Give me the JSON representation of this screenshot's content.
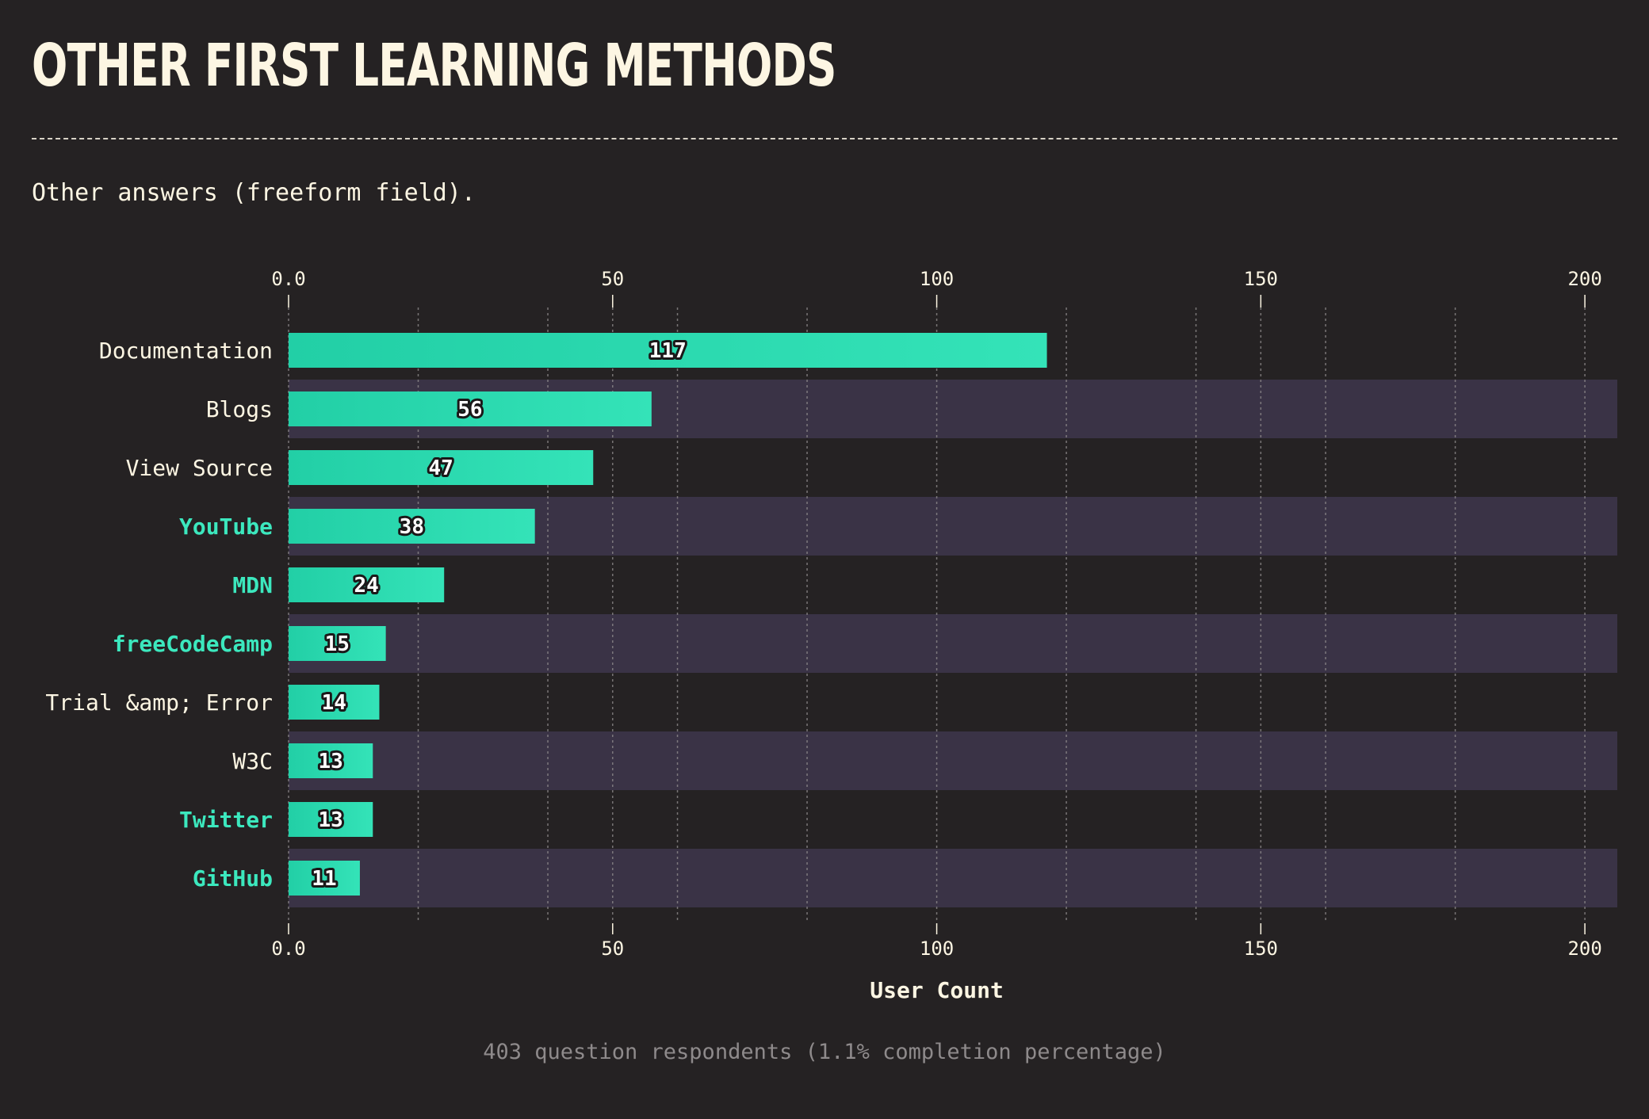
{
  "header": {
    "title": "OTHER FIRST LEARNING METHODS",
    "subtitle": "Other answers (freeform field)."
  },
  "footer": {
    "note": "403 question respondents (1.1% completion percentage)"
  },
  "colors": {
    "background": "#252223",
    "band": "#3a3346",
    "bar_start": "#22cfa6",
    "bar_end": "#34e3b8",
    "label_text": "#fdf6e3",
    "highlight_label": "#3ce8be",
    "grid": "#8e8a8b"
  },
  "chart_data": {
    "type": "bar",
    "orientation": "horizontal",
    "categories": [
      "Documentation",
      "Blogs",
      "View Source",
      "YouTube",
      "MDN",
      "freeCodeCamp",
      "Trial &amp; Error",
      "W3C",
      "Twitter",
      "GitHub"
    ],
    "values": [
      117,
      56,
      47,
      38,
      24,
      15,
      14,
      13,
      13,
      11
    ],
    "highlighted": [
      false,
      false,
      false,
      true,
      true,
      true,
      false,
      false,
      true,
      true
    ],
    "xlabel": "User Count",
    "ylabel": "",
    "xlim": [
      0,
      205
    ],
    "xticks": [
      0,
      50,
      100,
      150,
      200
    ],
    "xtick_labels": [
      "0.0",
      "50",
      "100",
      "150",
      "200"
    ],
    "minor_grid": [
      20,
      40,
      60,
      80,
      120,
      140,
      160,
      180
    ],
    "grid": true,
    "value_labels": true,
    "axis_position": "top-and-bottom",
    "alternating_bands": true
  }
}
